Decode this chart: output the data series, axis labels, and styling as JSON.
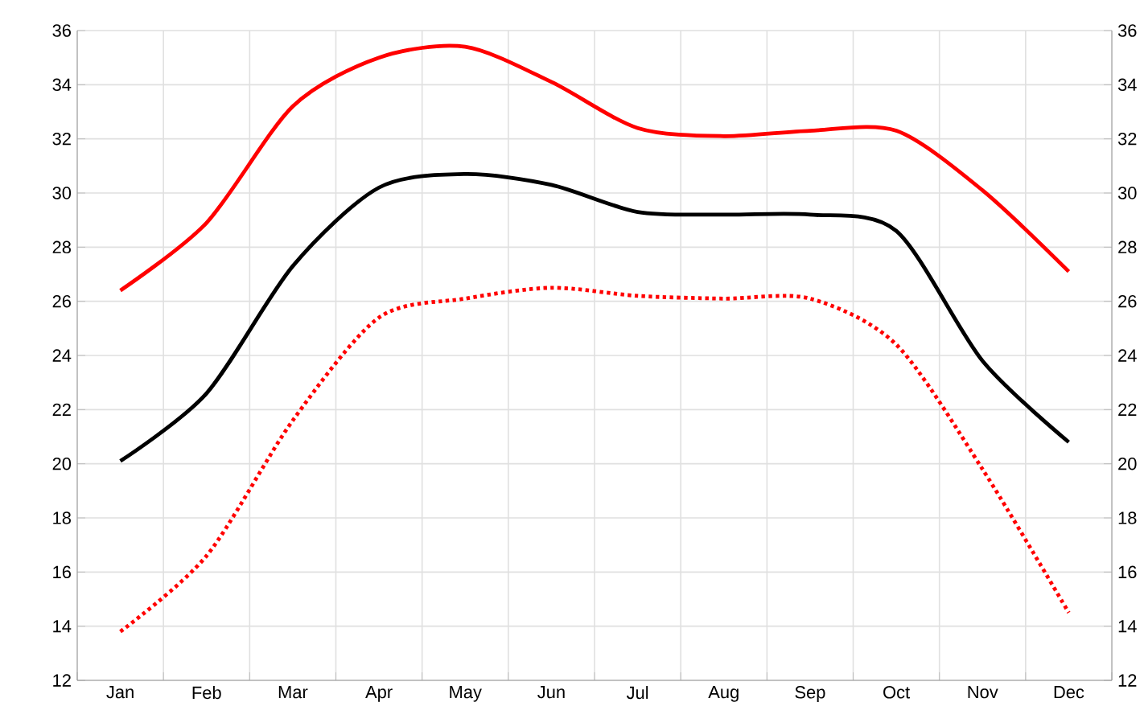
{
  "chart_data": {
    "type": "line",
    "categories": [
      "Jan",
      "Feb",
      "Mar",
      "Apr",
      "May",
      "Jun",
      "Jul",
      "Aug",
      "Sep",
      "Oct",
      "Nov",
      "Dec"
    ],
    "series": [
      {
        "color": "#ff0000",
        "line_style": "solid",
        "values": [
          26.4,
          28.9,
          33.2,
          35.0,
          35.4,
          34.1,
          32.4,
          32.1,
          32.3,
          32.3,
          30.1,
          27.1
        ]
      },
      {
        "color": "#000000",
        "line_style": "solid",
        "values": [
          20.1,
          22.6,
          27.3,
          30.2,
          30.7,
          30.3,
          29.3,
          29.2,
          29.2,
          28.6,
          23.8,
          20.8
        ]
      },
      {
        "color": "#ff0000",
        "line_style": "dotted",
        "values": [
          13.8,
          16.6,
          21.6,
          25.4,
          26.1,
          26.5,
          26.2,
          26.1,
          26.1,
          24.4,
          19.8,
          14.5
        ]
      }
    ],
    "ylim": [
      12,
      36
    ],
    "yticks": [
      12,
      14,
      16,
      18,
      20,
      22,
      24,
      26,
      28,
      30,
      32,
      34,
      36
    ],
    "y2lim": [
      12,
      36
    ],
    "y2ticks": [
      12,
      14,
      16,
      18,
      20,
      22,
      24,
      26,
      28,
      30,
      32,
      34,
      36
    ],
    "grid": true,
    "marker": "none"
  }
}
